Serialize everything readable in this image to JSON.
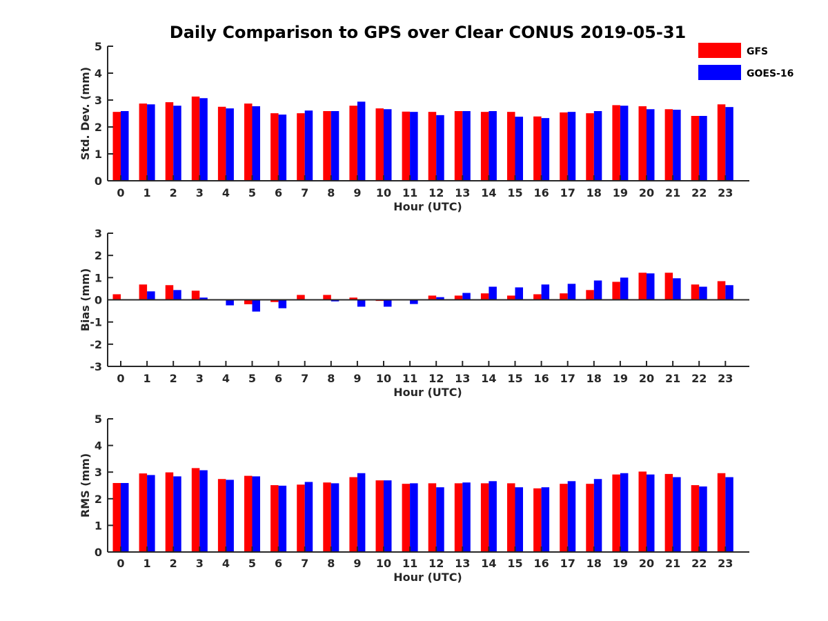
{
  "chart_data": {
    "title": "Daily Comparison to GPS over Clear CONUS 2019-05-31",
    "legend": [
      {
        "name": "GFS",
        "color": "#ff0000"
      },
      {
        "name": "GOES-16",
        "color": "#0000ff"
      }
    ],
    "legend_position": "top-right",
    "panels": [
      {
        "type": "bar",
        "ylabel": "Std. Dev. (mm)",
        "xlabel": "Hour (UTC)",
        "ylim": [
          0,
          5
        ],
        "yticks": [
          0,
          1,
          2,
          3,
          4,
          5
        ],
        "categories": [
          "0",
          "1",
          "2",
          "3",
          "4",
          "5",
          "6",
          "7",
          "8",
          "9",
          "10",
          "11",
          "12",
          "13",
          "14",
          "15",
          "16",
          "17",
          "18",
          "19",
          "20",
          "21",
          "22",
          "23"
        ],
        "series": [
          {
            "name": "GFS",
            "values": [
              2.56,
              2.87,
              2.92,
              3.13,
              2.75,
              2.87,
              2.51,
              2.51,
              2.59,
              2.79,
              2.69,
              2.57,
              2.56,
              2.59,
              2.56,
              2.56,
              2.39,
              2.54,
              2.51,
              2.81,
              2.77,
              2.66,
              2.41,
              2.84
            ]
          },
          {
            "name": "GOES-16",
            "values": [
              2.59,
              2.84,
              2.79,
              3.07,
              2.69,
              2.77,
              2.46,
              2.61,
              2.59,
              2.94,
              2.66,
              2.56,
              2.44,
              2.59,
              2.59,
              2.38,
              2.33,
              2.56,
              2.59,
              2.79,
              2.66,
              2.64,
              2.41,
              2.74
            ]
          }
        ]
      },
      {
        "type": "bar",
        "ylabel": "Bias (mm)",
        "xlabel": "Hour (UTC)",
        "ylim": [
          -3,
          3
        ],
        "yticks": [
          -3,
          -2,
          -1,
          0,
          1,
          2,
          3
        ],
        "categories": [
          "0",
          "1",
          "2",
          "3",
          "4",
          "5",
          "6",
          "7",
          "8",
          "9",
          "10",
          "11",
          "12",
          "13",
          "14",
          "15",
          "16",
          "17",
          "18",
          "19",
          "20",
          "21",
          "22",
          "23"
        ],
        "series": [
          {
            "name": "GFS",
            "values": [
              0.25,
              0.69,
              0.66,
              0.41,
              0.0,
              -0.2,
              -0.1,
              0.22,
              0.22,
              0.1,
              -0.05,
              0.0,
              0.19,
              0.19,
              0.29,
              0.19,
              0.25,
              0.29,
              0.44,
              0.81,
              1.22,
              1.22,
              0.69,
              0.84
            ]
          },
          {
            "name": "GOES-16",
            "values": [
              0.03,
              0.38,
              0.44,
              0.1,
              -0.25,
              -0.53,
              -0.38,
              0.0,
              -0.07,
              -0.31,
              -0.31,
              -0.19,
              0.12,
              0.31,
              0.59,
              0.56,
              0.69,
              0.72,
              0.87,
              1.0,
              1.19,
              0.97,
              0.59,
              0.66
            ]
          }
        ]
      },
      {
        "type": "bar",
        "ylabel": "RMS (mm)",
        "xlabel": "Hour (UTC)",
        "ylim": [
          0,
          5
        ],
        "yticks": [
          0,
          1,
          2,
          3,
          4,
          5
        ],
        "categories": [
          "0",
          "1",
          "2",
          "3",
          "4",
          "5",
          "6",
          "7",
          "8",
          "9",
          "10",
          "11",
          "12",
          "13",
          "14",
          "15",
          "16",
          "17",
          "18",
          "19",
          "20",
          "21",
          "22",
          "23"
        ],
        "series": [
          {
            "name": "GFS",
            "values": [
              2.59,
              2.95,
              2.99,
              3.15,
              2.74,
              2.86,
              2.51,
              2.53,
              2.61,
              2.81,
              2.69,
              2.56,
              2.58,
              2.58,
              2.58,
              2.58,
              2.39,
              2.56,
              2.56,
              2.91,
              3.02,
              2.93,
              2.51,
              2.96
            ]
          },
          {
            "name": "GOES-16",
            "values": [
              2.59,
              2.89,
              2.84,
              3.07,
              2.71,
              2.84,
              2.49,
              2.63,
              2.58,
              2.96,
              2.69,
              2.58,
              2.43,
              2.61,
              2.66,
              2.43,
              2.43,
              2.66,
              2.74,
              2.96,
              2.91,
              2.81,
              2.46,
              2.81
            ]
          }
        ]
      }
    ]
  }
}
